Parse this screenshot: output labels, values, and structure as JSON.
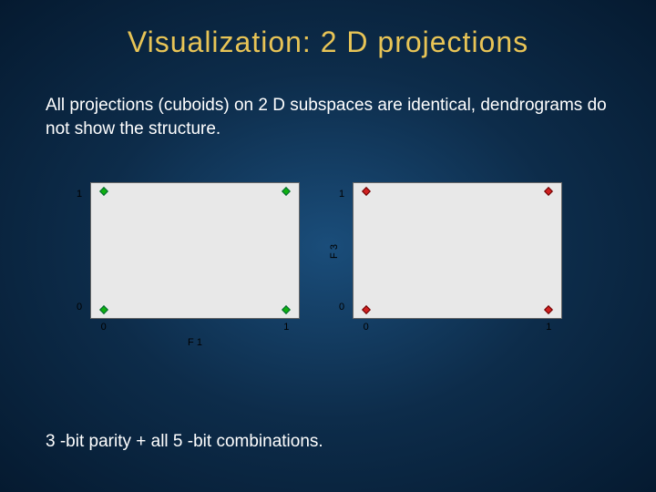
{
  "title": "Visualization: 2 D projections",
  "body": "All projections (cuboids) on 2 D subspaces are identical, dendrograms do not show the structure.",
  "footer": "3 -bit parity + all 5 -bit combinations.",
  "charts": {
    "left": {
      "xlabel": "F 1",
      "ylabel": "",
      "xtick0": "0",
      "xtick1": "1",
      "ytick0": "0",
      "ytick1": "1",
      "points": [
        {
          "x": 6,
          "y": 6,
          "cls": "green"
        },
        {
          "x": 94,
          "y": 6,
          "cls": "green"
        },
        {
          "x": 6,
          "y": 94,
          "cls": "green"
        },
        {
          "x": 94,
          "y": 94,
          "cls": "green"
        }
      ],
      "bg": "#e8e8e8"
    },
    "right": {
      "xlabel": "",
      "ylabel": "F 3",
      "xtick0": "0",
      "xtick1": "1",
      "ytick0": "0",
      "ytick1": "1",
      "points": [
        {
          "x": 6,
          "y": 6,
          "cls": "red"
        },
        {
          "x": 94,
          "y": 6,
          "cls": "red"
        },
        {
          "x": 6,
          "y": 94,
          "cls": "red"
        },
        {
          "x": 94,
          "y": 94,
          "cls": "red"
        }
      ],
      "bg": "#e8e8e8"
    }
  },
  "colors": {
    "title": "#e8c456",
    "text": "#ffffff"
  }
}
